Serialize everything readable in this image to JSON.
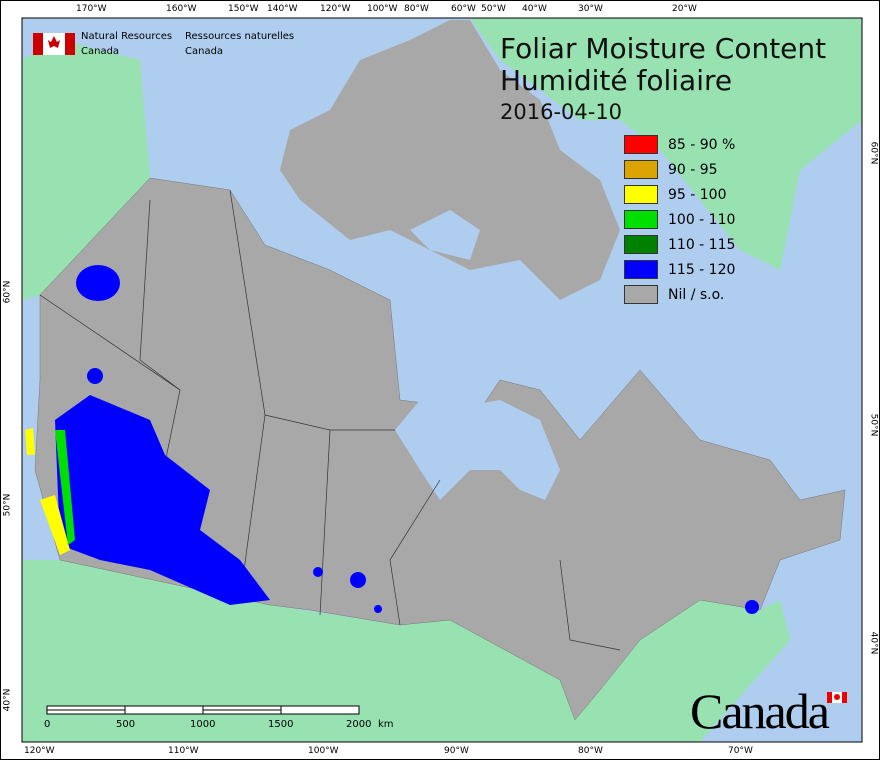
{
  "title": {
    "en": "Foliar Moisture Content",
    "fr": "Humidité foliaire",
    "date": "2016-04-10"
  },
  "agency": {
    "en_line1": "Natural Resources",
    "en_line2": "Canada",
    "fr_line1": "Ressources naturelles",
    "fr_line2": "Canada"
  },
  "wordmark": "Canada",
  "legend": [
    {
      "label": "85 - 90 %",
      "color": "#ff0000"
    },
    {
      "label": "90 - 95",
      "color": "#dba400"
    },
    {
      "label": "95 - 100",
      "color": "#ffff00"
    },
    {
      "label": "100 - 110",
      "color": "#00e000"
    },
    {
      "label": "110 - 115",
      "color": "#008000"
    },
    {
      "label": "115 - 120",
      "color": "#0000ff"
    },
    {
      "label": "Nil / s.o.",
      "color": "#a8a8a8"
    }
  ],
  "top_ticks": [
    "170°W",
    "160°W",
    "150°W",
    "140°W",
    "120°W",
    "100°W",
    "80°W",
    "60°W",
    "50°W",
    "40°W",
    "30°W",
    "20°W"
  ],
  "bottom_ticks": [
    "120°W",
    "110°W",
    "100°W",
    "90°W",
    "80°W",
    "70°W"
  ],
  "left_ticks": [
    "60°N",
    "50°N",
    "40°N"
  ],
  "right_ticks": [
    "60°N",
    "50°N",
    "40°N"
  ],
  "scale_bar": {
    "labels": [
      "0",
      "500",
      "1000",
      "1500",
      "2000"
    ],
    "unit": "km"
  },
  "colors": {
    "ocean": "#aecdef",
    "foreign_land": "#98e2b2",
    "canada_nil": "#a8a8a8"
  }
}
